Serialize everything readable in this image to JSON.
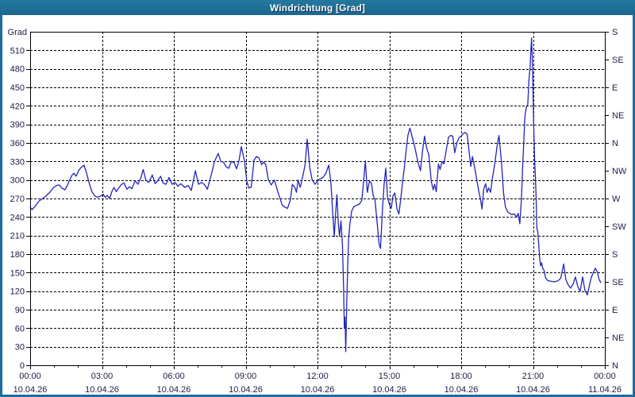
{
  "window": {
    "title": "Windrichtung [Grad]"
  },
  "colors": {
    "titlebar": "#1e6d9f",
    "window_border": "#1e6d9f",
    "plot_background": "#ffffff",
    "grid": "#000000",
    "frame": "#000000",
    "label_text": "#1c1c46",
    "line": "#2323bb"
  },
  "chart_data": {
    "type": "line",
    "title": "Windrichtung [Grad]",
    "grid": {
      "horizontal_step_deg": 30,
      "vertical_step_hours": 3,
      "style": "dashed"
    },
    "legend": "none",
    "y_left": {
      "axis_title": "Grad",
      "min": 0,
      "max": 540,
      "tick_step": 30,
      "tick_labels": [
        "0",
        "30",
        "60",
        "90",
        "120",
        "150",
        "180",
        "210",
        "240",
        "270",
        "300",
        "330",
        "360",
        "390",
        "420",
        "450",
        "480",
        "510"
      ]
    },
    "y_right": {
      "ticks": [
        {
          "v": 540,
          "label": "S"
        },
        {
          "v": 495,
          "label": "SE"
        },
        {
          "v": 450,
          "label": "E"
        },
        {
          "v": 405,
          "label": "NE"
        },
        {
          "v": 360,
          "label": "N"
        },
        {
          "v": 315,
          "label": "NW"
        },
        {
          "v": 270,
          "label": "W"
        },
        {
          "v": 225,
          "label": "SW"
        },
        {
          "v": 180,
          "label": "S"
        },
        {
          "v": 135,
          "label": "SE"
        },
        {
          "v": 90,
          "label": "E"
        },
        {
          "v": 45,
          "label": "NE"
        },
        {
          "v": 0,
          "label": "N"
        }
      ]
    },
    "x": {
      "min": 0,
      "max": 24,
      "minor_tick_hours": 1,
      "major_ticks": [
        {
          "t": 0,
          "time": "00:00",
          "date": "10.04.26"
        },
        {
          "t": 3,
          "time": "03:00",
          "date": "10.04.26"
        },
        {
          "t": 6,
          "time": "06:00",
          "date": "10.04.26"
        },
        {
          "t": 9,
          "time": "09:00",
          "date": "10.04.26"
        },
        {
          "t": 12,
          "time": "12:00",
          "date": "10.04.26"
        },
        {
          "t": 15,
          "time": "15:00",
          "date": "10.04.26"
        },
        {
          "t": 18,
          "time": "18:00",
          "date": "10.04.26"
        },
        {
          "t": 21,
          "time": "21:00",
          "date": "10.04.26"
        },
        {
          "t": 24,
          "time": "00:00",
          "date": "11.04.26"
        }
      ]
    },
    "series": [
      {
        "name": "Windrichtung",
        "color": "#2323bb",
        "points": [
          [
            0.0,
            256
          ],
          [
            0.08,
            252
          ],
          [
            0.2,
            257
          ],
          [
            0.37,
            266
          ],
          [
            0.6,
            272
          ],
          [
            0.82,
            280
          ],
          [
            0.98,
            288
          ],
          [
            1.1,
            291
          ],
          [
            1.22,
            292
          ],
          [
            1.32,
            287
          ],
          [
            1.45,
            284
          ],
          [
            1.55,
            291
          ],
          [
            1.65,
            300
          ],
          [
            1.75,
            308
          ],
          [
            1.83,
            311
          ],
          [
            1.92,
            306
          ],
          [
            2.02,
            315
          ],
          [
            2.12,
            320
          ],
          [
            2.25,
            324
          ],
          [
            2.35,
            312
          ],
          [
            2.45,
            297
          ],
          [
            2.58,
            281
          ],
          [
            2.7,
            274
          ],
          [
            2.82,
            272
          ],
          [
            2.95,
            274
          ],
          [
            3.05,
            277
          ],
          [
            3.13,
            272
          ],
          [
            3.22,
            275
          ],
          [
            3.32,
            270
          ],
          [
            3.42,
            282
          ],
          [
            3.5,
            288
          ],
          [
            3.6,
            281
          ],
          [
            3.7,
            287
          ],
          [
            3.82,
            293
          ],
          [
            3.92,
            295
          ],
          [
            4.04,
            285
          ],
          [
            4.15,
            289
          ],
          [
            4.25,
            286
          ],
          [
            4.38,
            299
          ],
          [
            4.5,
            293
          ],
          [
            4.62,
            303
          ],
          [
            4.72,
            317
          ],
          [
            4.83,
            300
          ],
          [
            4.95,
            296
          ],
          [
            5.1,
            308
          ],
          [
            5.22,
            294
          ],
          [
            5.33,
            299
          ],
          [
            5.45,
            306
          ],
          [
            5.55,
            295
          ],
          [
            5.67,
            293
          ],
          [
            5.8,
            304
          ],
          [
            5.93,
            293
          ],
          [
            6.05,
            296
          ],
          [
            6.17,
            290
          ],
          [
            6.3,
            294
          ],
          [
            6.45,
            288
          ],
          [
            6.6,
            291
          ],
          [
            6.73,
            283
          ],
          [
            6.9,
            315
          ],
          [
            7.03,
            293
          ],
          [
            7.15,
            296
          ],
          [
            7.27,
            293
          ],
          [
            7.4,
            285
          ],
          [
            7.56,
            308
          ],
          [
            7.7,
            330
          ],
          [
            7.85,
            343
          ],
          [
            7.96,
            330
          ],
          [
            8.07,
            329
          ],
          [
            8.19,
            321
          ],
          [
            8.3,
            319
          ],
          [
            8.4,
            330
          ],
          [
            8.52,
            328
          ],
          [
            8.62,
            318
          ],
          [
            8.72,
            331
          ],
          [
            8.82,
            354
          ],
          [
            8.95,
            331
          ],
          [
            9.05,
            298
          ],
          [
            9.13,
            287
          ],
          [
            9.23,
            288
          ],
          [
            9.35,
            332
          ],
          [
            9.45,
            338
          ],
          [
            9.55,
            336
          ],
          [
            9.67,
            325
          ],
          [
            9.75,
            329
          ],
          [
            9.84,
            325
          ],
          [
            9.95,
            300
          ],
          [
            10.07,
            292
          ],
          [
            10.2,
            300
          ],
          [
            10.35,
            280
          ],
          [
            10.52,
            260
          ],
          [
            10.63,
            256
          ],
          [
            10.75,
            254
          ],
          [
            10.87,
            268
          ],
          [
            10.95,
            293
          ],
          [
            11.05,
            288
          ],
          [
            11.12,
            280
          ],
          [
            11.19,
            300
          ],
          [
            11.28,
            288
          ],
          [
            11.38,
            305
          ],
          [
            11.48,
            324
          ],
          [
            11.57,
            366
          ],
          [
            11.68,
            319
          ],
          [
            11.78,
            300
          ],
          [
            11.9,
            293
          ],
          [
            12.0,
            298
          ],
          [
            12.12,
            302
          ],
          [
            12.23,
            304
          ],
          [
            12.35,
            311
          ],
          [
            12.47,
            324
          ],
          [
            12.56,
            295
          ],
          [
            12.62,
            257
          ],
          [
            12.7,
            208
          ],
          [
            12.76,
            248
          ],
          [
            12.81,
            276
          ],
          [
            12.87,
            229
          ],
          [
            12.92,
            209
          ],
          [
            12.98,
            234
          ],
          [
            13.04,
            197
          ],
          [
            13.09,
            125
          ],
          [
            13.12,
            60
          ],
          [
            13.15,
            78
          ],
          [
            13.18,
            22
          ],
          [
            13.22,
            99
          ],
          [
            13.26,
            158
          ],
          [
            13.3,
            206
          ],
          [
            13.36,
            231
          ],
          [
            13.43,
            250
          ],
          [
            13.52,
            257
          ],
          [
            13.63,
            259
          ],
          [
            13.75,
            261
          ],
          [
            13.85,
            267
          ],
          [
            13.93,
            300
          ],
          [
            14.0,
            331
          ],
          [
            14.08,
            280
          ],
          [
            14.17,
            298
          ],
          [
            14.25,
            295
          ],
          [
            14.33,
            274
          ],
          [
            14.4,
            268
          ],
          [
            14.5,
            227
          ],
          [
            14.57,
            197
          ],
          [
            14.63,
            189
          ],
          [
            14.72,
            257
          ],
          [
            14.78,
            292
          ],
          [
            14.85,
            319
          ],
          [
            14.93,
            270
          ],
          [
            15.0,
            261
          ],
          [
            15.08,
            254
          ],
          [
            15.15,
            274
          ],
          [
            15.23,
            279
          ],
          [
            15.32,
            253
          ],
          [
            15.4,
            245
          ],
          [
            15.48,
            270
          ],
          [
            15.55,
            296
          ],
          [
            15.63,
            321
          ],
          [
            15.7,
            347
          ],
          [
            15.78,
            373
          ],
          [
            15.86,
            384
          ],
          [
            15.95,
            370
          ],
          [
            16.07,
            352
          ],
          [
            16.2,
            328
          ],
          [
            16.3,
            315
          ],
          [
            16.38,
            345
          ],
          [
            16.47,
            371
          ],
          [
            16.57,
            350
          ],
          [
            16.65,
            341
          ],
          [
            16.75,
            298
          ],
          [
            16.83,
            284
          ],
          [
            16.89,
            293
          ],
          [
            16.96,
            281
          ],
          [
            17.05,
            326
          ],
          [
            17.12,
            317
          ],
          [
            17.2,
            330
          ],
          [
            17.28,
            326
          ],
          [
            17.38,
            349
          ],
          [
            17.47,
            369
          ],
          [
            17.55,
            372
          ],
          [
            17.65,
            371
          ],
          [
            17.73,
            344
          ],
          [
            17.82,
            360
          ],
          [
            17.92,
            369
          ],
          [
            18.0,
            371
          ],
          [
            18.08,
            375
          ],
          [
            18.17,
            377
          ],
          [
            18.25,
            374
          ],
          [
            18.33,
            347
          ],
          [
            18.4,
            322
          ],
          [
            18.47,
            338
          ],
          [
            18.57,
            319
          ],
          [
            18.65,
            301
          ],
          [
            18.73,
            283
          ],
          [
            18.8,
            270
          ],
          [
            18.87,
            253
          ],
          [
            18.94,
            285
          ],
          [
            19.02,
            294
          ],
          [
            19.08,
            280
          ],
          [
            19.15,
            287
          ],
          [
            19.23,
            280
          ],
          [
            19.3,
            302
          ],
          [
            19.4,
            325
          ],
          [
            19.5,
            355
          ],
          [
            19.58,
            372
          ],
          [
            19.68,
            330
          ],
          [
            19.77,
            279
          ],
          [
            19.85,
            256
          ],
          [
            19.95,
            248
          ],
          [
            20.1,
            244
          ],
          [
            20.22,
            245
          ],
          [
            20.32,
            240
          ],
          [
            20.38,
            246
          ],
          [
            20.45,
            229
          ],
          [
            20.52,
            272
          ],
          [
            20.56,
            315
          ],
          [
            20.61,
            358
          ],
          [
            20.66,
            402
          ],
          [
            20.72,
            418
          ],
          [
            20.78,
            422
          ],
          [
            20.83,
            461
          ],
          [
            20.88,
            483
          ],
          [
            20.91,
            509
          ],
          [
            20.94,
            530
          ],
          [
            20.97,
            497
          ],
          [
            21.0,
            446
          ],
          [
            21.03,
            388
          ],
          [
            21.07,
            330
          ],
          [
            21.1,
            305
          ],
          [
            21.13,
            272
          ],
          [
            21.16,
            222
          ],
          [
            21.2,
            216
          ],
          [
            21.24,
            195
          ],
          [
            21.28,
            172
          ],
          [
            21.32,
            161
          ],
          [
            21.36,
            166
          ],
          [
            21.41,
            156
          ],
          [
            21.46,
            154
          ],
          [
            21.53,
            141
          ],
          [
            21.62,
            137
          ],
          [
            21.75,
            136
          ],
          [
            21.9,
            135
          ],
          [
            22.05,
            137
          ],
          [
            22.16,
            141
          ],
          [
            22.28,
            164
          ],
          [
            22.37,
            139
          ],
          [
            22.47,
            130
          ],
          [
            22.57,
            125
          ],
          [
            22.67,
            131
          ],
          [
            22.77,
            143
          ],
          [
            22.88,
            126
          ],
          [
            22.97,
            120
          ],
          [
            23.07,
            143
          ],
          [
            23.17,
            121
          ],
          [
            23.27,
            114
          ],
          [
            23.35,
            128
          ],
          [
            23.43,
            142
          ],
          [
            23.52,
            150
          ],
          [
            23.6,
            157
          ],
          [
            23.68,
            152
          ],
          [
            23.76,
            139
          ],
          [
            23.83,
            134
          ]
        ]
      }
    ]
  }
}
